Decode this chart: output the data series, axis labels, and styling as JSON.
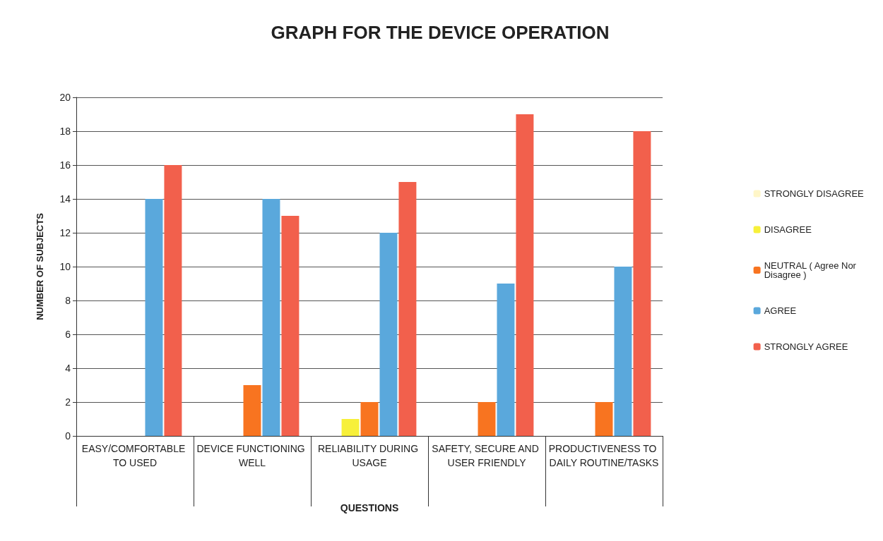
{
  "chart_data": {
    "type": "bar",
    "title": "GRAPH FOR THE DEVICE OPERATION",
    "xlabel": "QUESTIONS",
    "ylabel": "NUMBER OF SUBJECTS",
    "categories": [
      "EASY/COMFORTABLE TO USED",
      "DEVICE FUNCTIONING WELL",
      "RELIABILITY DURING USAGE",
      "SAFETY, SECURE AND USER FRIENDLY",
      "PRODUCTIVENESS TO DAILY ROUTINE/TASKS"
    ],
    "series": [
      {
        "name": "STRONGLY DISAGREE",
        "color": "#fff6c8",
        "values": [
          0,
          0,
          0,
          0,
          0
        ]
      },
      {
        "name": "DISAGREE",
        "color": "#f7f03a",
        "values": [
          0,
          0,
          1,
          0,
          0
        ]
      },
      {
        "name": "NEUTRAL ( Agree Nor Disagree )",
        "color": "#f87420",
        "values": [
          0,
          3,
          2,
          2,
          2
        ]
      },
      {
        "name": "AGREE",
        "color": "#5aa8dc",
        "values": [
          14,
          14,
          12,
          9,
          10
        ]
      },
      {
        "name": "STRONGLY AGREE",
        "color": "#f2604c",
        "values": [
          16,
          13,
          15,
          19,
          18
        ]
      }
    ],
    "ylim": [
      0,
      20
    ],
    "yticks": [
      0,
      2,
      4,
      6,
      8,
      10,
      12,
      14,
      16,
      18,
      20
    ],
    "grid": "y",
    "legend": "right"
  }
}
